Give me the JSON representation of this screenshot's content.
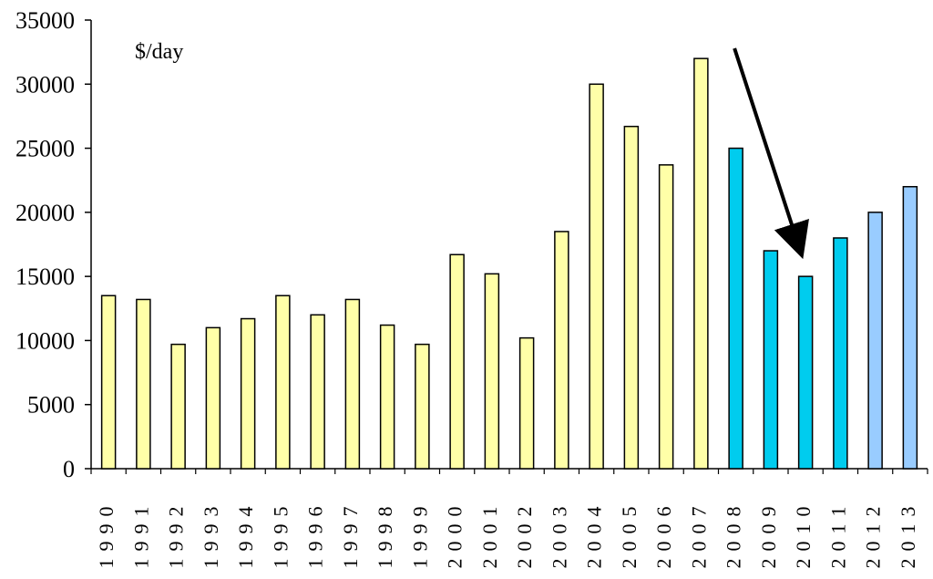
{
  "chart_data": {
    "type": "bar",
    "unit_label": "$/day",
    "categories": [
      "1990",
      "1991",
      "1992",
      "1993",
      "1994",
      "1995",
      "1996",
      "1997",
      "1998",
      "1999",
      "2000",
      "2001",
      "2002",
      "2003",
      "2004",
      "2005",
      "2006",
      "2007",
      "2008",
      "2009",
      "2010",
      "2011",
      "2012",
      "2013"
    ],
    "values": [
      13500,
      13200,
      9700,
      11000,
      11700,
      13500,
      12000,
      13200,
      11200,
      9700,
      16700,
      15200,
      10200,
      18500,
      30000,
      26700,
      23700,
      32000,
      25000,
      17000,
      15000,
      18000,
      20000,
      22000
    ],
    "bar_colors": [
      "#ffffa8",
      "#ffffa8",
      "#ffffa8",
      "#ffffa8",
      "#ffffa8",
      "#ffffa8",
      "#ffffa8",
      "#ffffa8",
      "#ffffa8",
      "#ffffa8",
      "#ffffa8",
      "#ffffa8",
      "#ffffa8",
      "#ffffa8",
      "#ffffa8",
      "#ffffa8",
      "#ffffa8",
      "#ffffa8",
      "#00ccee",
      "#00ccee",
      "#00ccee",
      "#00ccee",
      "#99ccff",
      "#99ccff"
    ],
    "y_ticks": [
      0,
      5000,
      10000,
      15000,
      20000,
      25000,
      30000,
      35000
    ],
    "ylim": [
      0,
      35000
    ],
    "grid": false,
    "annotation": {
      "type": "arrow",
      "description": "downward arrow pointing to 2010 bar",
      "target_category": "2010"
    },
    "colors": {
      "historical": "#ffffa8",
      "recent": "#00ccee",
      "forecast": "#99ccff",
      "outline": "#000000"
    }
  }
}
